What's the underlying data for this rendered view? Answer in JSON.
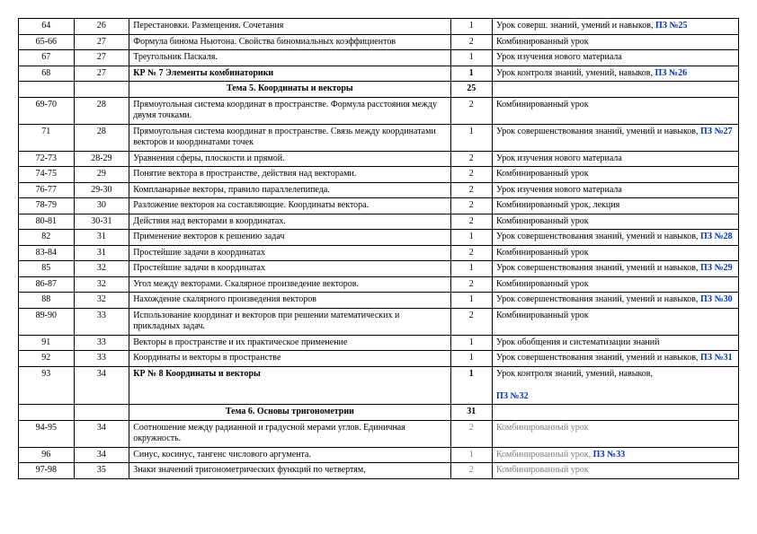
{
  "rows": [
    {
      "c1": "64",
      "c2": "26",
      "c3": "Перестановки. Размещения. Сочетания",
      "c4": "1",
      "c5": "Урок соверш. знаний, умений и навыков,",
      "link": "ПЗ №25",
      "bold": false
    },
    {
      "c1": "65-66",
      "c2": "27",
      "c3": "Формула бинома Ньютона. Свойства биномиальных коэффициентов",
      "c4": "2",
      "c5": "Комбинированный   урок",
      "link": "",
      "bold": false
    },
    {
      "c1": "67",
      "c2": "27",
      "c3": "Треугольник Паскаля.",
      "c4": "1",
      "c5": "Урок изучения нового материала",
      "link": "",
      "bold": false
    },
    {
      "c1": "68",
      "c2": "27",
      "c3": "КР № 7 Элементы комбинаторики",
      "c4": "1",
      "c5": "Урок   контроля знаний, умений, навыков,",
      "link": "ПЗ №26",
      "bold": true
    },
    {
      "c1": "",
      "c2": "",
      "c3": "Тема 5. Координаты и векторы",
      "c4": "25",
      "c5": "",
      "link": "",
      "bold": true,
      "header": true
    },
    {
      "c1": "69-70",
      "c2": "28",
      "c3": "Прямоугольная  система координат в пространстве. Формула расстояния между двумя точками.",
      "c4": "2",
      "c5": "Комбинированный   урок",
      "link": "",
      "bold": false
    },
    {
      "c1": "71",
      "c2": "28",
      "c3": "Прямоугольная система координат в пространстве.  Связь между координатами векторов и координатами точек",
      "c4": "1",
      "c5": "Урок  совершенствования знаний, умений и навыков,",
      "link": "ПЗ №27",
      "bold": false
    },
    {
      "c1": "72-73",
      "c2": "28-29",
      "c3": "Уравнения сферы, плоскости и прямой.",
      "c4": "2",
      "c5": "Урок изучения нового материала",
      "link": "",
      "bold": false
    },
    {
      "c1": "74-75",
      "c2": "29",
      "c3": "Понятие вектора в пространстве, действия над векторами.",
      "c4": "2",
      "c5": "Комбинированный   урок",
      "link": "",
      "bold": false
    },
    {
      "c1": "76-77",
      "c2": "29-30",
      "c3": "Компланарные векторы, правило параллелепипеда.",
      "c4": "2",
      "c5": "Урок изучения нового материала",
      "link": "",
      "bold": false
    },
    {
      "c1": "78-79",
      "c2": "30",
      "c3": "Разложение векторов на составляющие. Координаты вектора.",
      "c4": "2",
      "c5": "Комбинированный   урок, лекция",
      "link": "",
      "bold": false
    },
    {
      "c1": "80-81",
      "c2": "30-31",
      "c3": "Действия над векторами в координатах.",
      "c4": "2",
      "c5": "Комбинированный   урок",
      "link": "",
      "bold": false
    },
    {
      "c1": "82",
      "c2": "31",
      "c3": "Применение векторов к решению задач",
      "c4": "1",
      "c5": "Урок  совершенствования знаний, умений и навыков,",
      "link": "ПЗ №28",
      "bold": false
    },
    {
      "c1": "83-84",
      "c2": "31",
      "c3": "Простейшие задачи в координатах",
      "c4": "2",
      "c5": "Комбинированный   урок",
      "link": "",
      "bold": false
    },
    {
      "c1": "85",
      "c2": "32",
      "c3": "Простейшие задачи в координатах",
      "c4": "1",
      "c5": "Урок  совершенствования знаний, умений и навыков,",
      "link": "ПЗ №29",
      "bold": false
    },
    {
      "c1": "86-87",
      "c2": "32",
      "c3": "Угол между векторами. Скалярное произведение векторов.",
      "c4": "2",
      "c5": "Комбинированный   урок",
      "link": "",
      "bold": false
    },
    {
      "c1": "88",
      "c2": "32",
      "c3": "Нахождение  скалярного произведения векторов",
      "c4": "1",
      "c5": "Урок  совершенствования знаний, умений и навыков,",
      "link": "ПЗ №30",
      "bold": false
    },
    {
      "c1": "89-90",
      "c2": "33",
      "c3": "Использование координат и векторов при решении математических и прикладных задач.",
      "c4": "2",
      "c5": "Комбинированный   урок",
      "link": "",
      "bold": false
    },
    {
      "c1": "91",
      "c2": "33",
      "c3": "Векторы в пространстве и их практическое применение",
      "c4": "1",
      "c5": "Урок обобщения и систематизации знаний",
      "link": "",
      "bold": false
    },
    {
      "c1": "92",
      "c2": "33",
      "c3": "Координаты и векторы в пространстве",
      "c4": "1",
      "c5": "Урок  совершенствования знаний, умений и навыков,",
      "link": "ПЗ №31",
      "bold": false
    },
    {
      "c1": "93",
      "c2": "34",
      "c3": "КР № 8  Координаты и векторы",
      "c4": "1",
      "c5": "Урок   контроля знаний, умений, навыков,",
      "link": "ПЗ №32",
      "bold": true,
      "linkbreak": true
    },
    {
      "c1": "",
      "c2": "",
      "c3": "Тема 6. Основы тригонометрии",
      "c4": "31",
      "c5": "",
      "link": "",
      "bold": true,
      "header": true
    },
    {
      "c1": "94-95",
      "c2": "34",
      "c3": "Соотношение между радианной и градусной мерами углов. Единичная окружность.",
      "c4": "2",
      "c5": "Комбинированный   урок",
      "link": "",
      "bold": false,
      "gray": true
    },
    {
      "c1": "96",
      "c2": "34",
      "c3": "Синус, косинус, тангенс числового аргумента.",
      "c4": "1",
      "c5": "Комбинированный    урок,",
      "link": "ПЗ №33",
      "bold": false,
      "gray": true
    },
    {
      "c1": "97-98",
      "c2": "35",
      "c3": "Знаки значений тригонометрических функций по четвертям,",
      "c4": "2",
      "c5": "Комбинированный   урок",
      "link": "",
      "bold": false,
      "gray": true
    }
  ]
}
